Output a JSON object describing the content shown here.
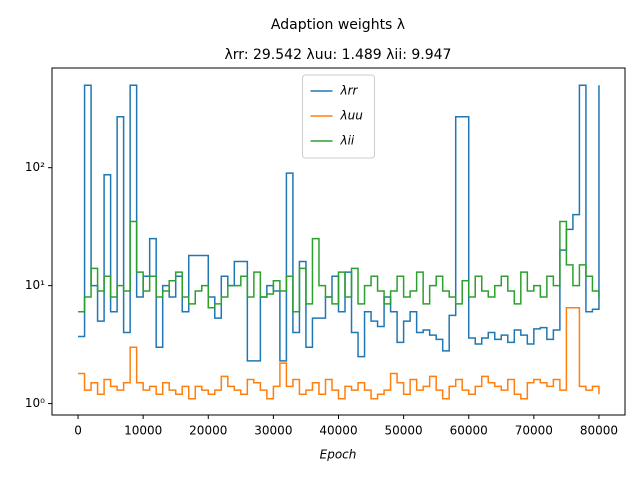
{
  "chart_data": {
    "type": "line",
    "drawstyle": "steps-post",
    "title": "Adaption weights λ",
    "subtitle": "λrr: 29.542 λuu: 1.489 λii: 9.947",
    "xlabel": "Epoch",
    "xlim": [
      -4000,
      84000
    ],
    "xticks": [
      0,
      10000,
      20000,
      30000,
      40000,
      50000,
      60000,
      70000,
      80000
    ],
    "ylim": [
      0.8,
      700
    ],
    "yscale": "log",
    "yticks": [
      {
        "value": 1,
        "label": "10⁰"
      },
      {
        "value": 10,
        "label": "10¹"
      },
      {
        "value": 100,
        "label": "10²"
      }
    ],
    "legend": "upper center",
    "x": [
      0,
      1000,
      2000,
      3000,
      4000,
      5000,
      6000,
      7000,
      8000,
      9000,
      10000,
      11000,
      12000,
      13000,
      14000,
      15000,
      16000,
      17000,
      18000,
      19000,
      20000,
      21000,
      22000,
      23000,
      24000,
      25000,
      26000,
      27000,
      28000,
      29000,
      30000,
      31000,
      32000,
      33000,
      34000,
      35000,
      36000,
      37000,
      38000,
      39000,
      40000,
      41000,
      42000,
      43000,
      44000,
      45000,
      46000,
      47000,
      48000,
      49000,
      50000,
      51000,
      52000,
      53000,
      54000,
      55000,
      56000,
      57000,
      58000,
      59000,
      60000,
      61000,
      62000,
      63000,
      64000,
      65000,
      66000,
      67000,
      68000,
      69000,
      70000,
      71000,
      72000,
      73000,
      74000,
      75000,
      76000,
      77000,
      78000,
      79000,
      80000
    ],
    "series": [
      {
        "name": "λrr",
        "color": "#1f77b4",
        "values": [
          3.7,
          500,
          10,
          5,
          87,
          6,
          270,
          4,
          500,
          8,
          12,
          25,
          3,
          10,
          8,
          12,
          6,
          18,
          18,
          18,
          8,
          5.3,
          12,
          10,
          16,
          16,
          2.3,
          2.3,
          8,
          10,
          9,
          2.3,
          90,
          4,
          16,
          3,
          5.3,
          5.3,
          8,
          12,
          6,
          13,
          4,
          2.5,
          6,
          5,
          4.5,
          8,
          6,
          3.3,
          5,
          6,
          4,
          4.2,
          3.8,
          3.5,
          2.8,
          5.6,
          270,
          270,
          3.6,
          3.2,
          3.6,
          4,
          3.5,
          3.8,
          3.3,
          4.2,
          3.8,
          3.2,
          4.3,
          4.4,
          3.5,
          4.2,
          20,
          30,
          40,
          500,
          6,
          6.3,
          500
        ]
      },
      {
        "name": "λuu",
        "color": "#ff7f0e",
        "values": [
          1.8,
          1.3,
          1.5,
          1.2,
          1.6,
          1.4,
          1.3,
          1.5,
          3.0,
          1.5,
          1.3,
          1.4,
          1.2,
          1.5,
          1.3,
          1.2,
          1.4,
          1.1,
          1.4,
          1.3,
          1.2,
          1.3,
          1.7,
          1.4,
          1.3,
          1.2,
          1.6,
          1.5,
          1.3,
          1.1,
          1.4,
          2.2,
          1.4,
          1.6,
          1.2,
          1.3,
          1.5,
          1.2,
          1.6,
          1.3,
          1.1,
          1.4,
          1.3,
          1.5,
          1.3,
          1.1,
          1.2,
          1.3,
          1.8,
          1.5,
          1.2,
          1.6,
          1.3,
          1.4,
          1.7,
          1.3,
          1.1,
          1.4,
          1.6,
          1.3,
          1.2,
          1.4,
          1.7,
          1.5,
          1.4,
          1.3,
          1.6,
          1.2,
          1.1,
          1.5,
          1.6,
          1.5,
          1.4,
          1.6,
          1.3,
          6.5,
          6.5,
          1.4,
          1.3,
          1.4,
          1.2
        ]
      },
      {
        "name": "λii",
        "color": "#2ca02c",
        "values": [
          6,
          8,
          14,
          9,
          12,
          8,
          10,
          9,
          35,
          13,
          9,
          12,
          8,
          9,
          11,
          13,
          8,
          7,
          9,
          10,
          6.5,
          7,
          8,
          10,
          10,
          12,
          8,
          13,
          8,
          8.5,
          11,
          9,
          12,
          6,
          14,
          7,
          25,
          10,
          8,
          7,
          13,
          8,
          14,
          7,
          10,
          12,
          9,
          7,
          9,
          12,
          8,
          9,
          13,
          7,
          10,
          12,
          9,
          8,
          7,
          11,
          8,
          12,
          9,
          8,
          10,
          12,
          9,
          7,
          13,
          9,
          10,
          8,
          12,
          10,
          35,
          15,
          10,
          15,
          12,
          9,
          8
        ]
      }
    ]
  }
}
